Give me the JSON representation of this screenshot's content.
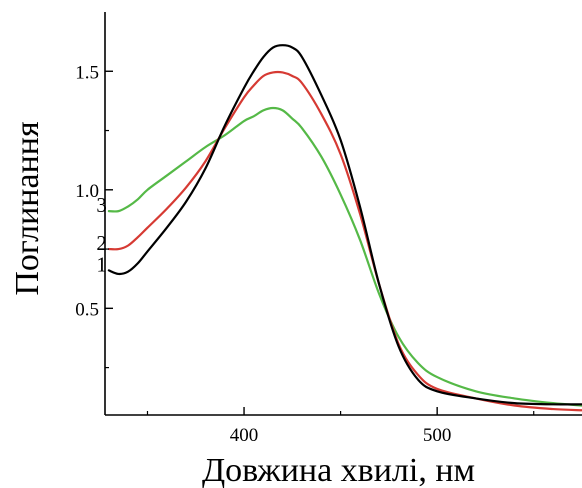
{
  "chart_data": {
    "type": "line",
    "title": "",
    "xlabel": "Довжина хвилі, нм",
    "ylabel": "Поглинання",
    "xlim": [
      328,
      575
    ],
    "ylim": [
      0.05,
      1.75
    ],
    "x_ticks_major": [
      400,
      500
    ],
    "x_ticks_minor": [
      350,
      450,
      550
    ],
    "y_ticks_major": [
      0.5,
      1.0,
      1.5
    ],
    "y_tick_labels": [
      "0.5",
      "1.0",
      "1.5"
    ],
    "y_ticks_minor": [
      0.25,
      0.75,
      1.25
    ],
    "grid": false,
    "legend": "inline labels at left end of curves",
    "series": [
      {
        "label": "1",
        "color": "#000000",
        "x": [
          330,
          335,
          340,
          345,
          350,
          360,
          370,
          380,
          390,
          400,
          405,
          410,
          415,
          420,
          425,
          430,
          440,
          450,
          460,
          470,
          480,
          490,
          500,
          520,
          540,
          560,
          575
        ],
        "y": [
          0.66,
          0.645,
          0.655,
          0.69,
          0.74,
          0.84,
          0.95,
          1.09,
          1.27,
          1.43,
          1.5,
          1.56,
          1.6,
          1.61,
          1.6,
          1.56,
          1.4,
          1.21,
          0.93,
          0.6,
          0.34,
          0.2,
          0.15,
          0.12,
          0.1,
          0.095,
          0.095
        ]
      },
      {
        "label": "2",
        "color": "#d63a33",
        "x": [
          330,
          335,
          340,
          345,
          350,
          360,
          370,
          380,
          390,
          400,
          405,
          410,
          415,
          420,
          425,
          430,
          440,
          450,
          460,
          470,
          480,
          490,
          500,
          520,
          540,
          560,
          575
        ],
        "y": [
          0.75,
          0.75,
          0.765,
          0.8,
          0.84,
          0.92,
          1.01,
          1.12,
          1.26,
          1.39,
          1.44,
          1.48,
          1.495,
          1.495,
          1.48,
          1.45,
          1.32,
          1.15,
          0.9,
          0.6,
          0.35,
          0.22,
          0.16,
          0.12,
          0.09,
          0.075,
          0.07
        ]
      },
      {
        "label": "3",
        "color": "#55b947",
        "x": [
          330,
          335,
          340,
          345,
          350,
          360,
          370,
          380,
          390,
          400,
          405,
          410,
          415,
          420,
          425,
          430,
          440,
          450,
          460,
          470,
          480,
          490,
          500,
          520,
          540,
          560,
          575
        ],
        "y": [
          0.91,
          0.91,
          0.93,
          0.96,
          1.0,
          1.06,
          1.12,
          1.18,
          1.23,
          1.29,
          1.31,
          1.335,
          1.345,
          1.335,
          1.3,
          1.26,
          1.14,
          0.98,
          0.79,
          0.56,
          0.38,
          0.27,
          0.21,
          0.15,
          0.12,
          0.1,
          0.09
        ]
      }
    ]
  }
}
